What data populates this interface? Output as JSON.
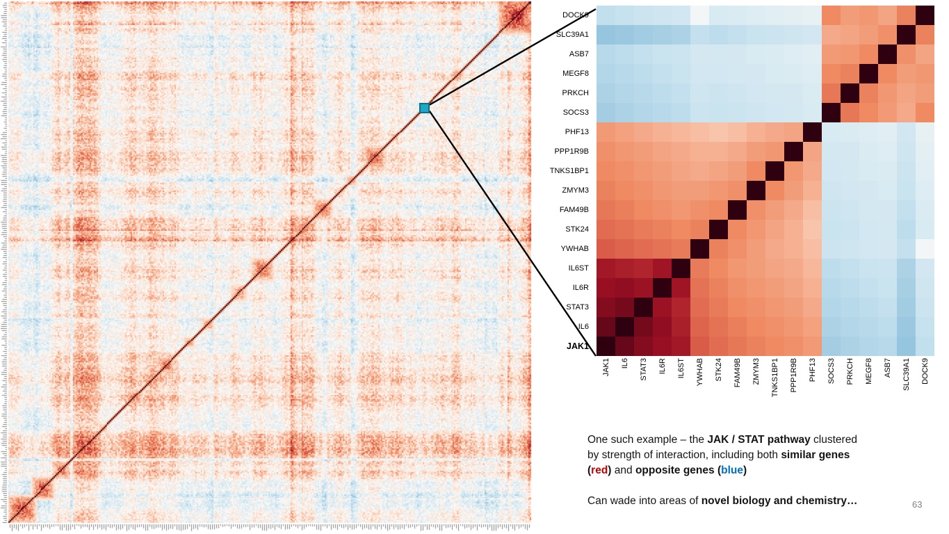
{
  "slide": {
    "page_number": "63"
  },
  "colors": {
    "positive_red": "#B2182B",
    "negative_blue": "#4393C3",
    "diagonal_dark": "#2E0010",
    "highlight_teal": "#1BA9C6",
    "caption_red": "#C00000",
    "caption_blue": "#0070C0"
  },
  "chart_data": [
    {
      "type": "heatmap",
      "name": "genome-wide-correlation-matrix",
      "description": "Large clustered gene-gene correlation matrix; red = positive correlation, blue = negative correlation, near-white = none. Dark red diagonal runs from bottom-left to top-right with red cluster blocks along it; tiny illegible gene tick labels line the left and bottom axes. A small teal square on the diagonal marks the JAK/STAT cluster that is enlarged at right.",
      "colormap": "blue-white-red (RdBu reversed)",
      "diagonal_orientation": "bottom-left to top-right",
      "highlight_cell": {
        "fraction_along_diagonal": 0.795,
        "color": "#1BA9C6",
        "links_to": "jak-stat-zoom"
      },
      "diagonal_clusters": [
        {
          "pos": 0.025,
          "size": 0.03,
          "intensity": 0.85
        },
        {
          "pos": 0.065,
          "size": 0.024,
          "intensity": 0.8
        },
        {
          "pos": 0.1,
          "size": 0.018,
          "intensity": 0.7
        },
        {
          "pos": 0.135,
          "size": 0.012,
          "intensity": 0.6
        },
        {
          "pos": 0.18,
          "size": 0.01,
          "intensity": 0.5
        },
        {
          "pos": 0.24,
          "size": 0.016,
          "intensity": 0.65
        },
        {
          "pos": 0.3,
          "size": 0.02,
          "intensity": 0.7
        },
        {
          "pos": 0.345,
          "size": 0.012,
          "intensity": 0.55
        },
        {
          "pos": 0.38,
          "size": 0.014,
          "intensity": 0.55
        },
        {
          "pos": 0.44,
          "size": 0.018,
          "intensity": 0.6
        },
        {
          "pos": 0.485,
          "size": 0.024,
          "intensity": 0.72
        },
        {
          "pos": 0.56,
          "size": 0.018,
          "intensity": 0.62
        },
        {
          "pos": 0.6,
          "size": 0.022,
          "intensity": 0.72
        },
        {
          "pos": 0.655,
          "size": 0.012,
          "intensity": 0.55
        },
        {
          "pos": 0.7,
          "size": 0.024,
          "intensity": 0.75
        },
        {
          "pos": 0.795,
          "size": 0.009,
          "intensity": 0.85
        },
        {
          "pos": 0.86,
          "size": 0.012,
          "intensity": 0.55
        },
        {
          "pos": 0.97,
          "size": 0.038,
          "intensity": 0.92
        }
      ],
      "render": {
        "n_cells": 380,
        "seed": 7
      }
    },
    {
      "type": "heatmap",
      "name": "jak-stat-zoom",
      "legend": "red = similar genes, blue = opposite genes, dark diagonal = self-correlation",
      "value_range": [
        -1,
        1
      ],
      "bold_row_label": "JAK1",
      "col_labels": [
        "JAK1",
        "IL6",
        "STAT3",
        "IL6R",
        "IL6ST",
        "YWHAB",
        "STK24",
        "FAM49B",
        "ZMYM3",
        "TNKS1BP1",
        "PPP1R9B",
        "PHF13",
        "SOCS3",
        "PRKCH",
        "MEGF8",
        "ASB7",
        "SLC39A1",
        "DOCK9"
      ],
      "row_labels": [
        "DOCK9",
        "SLC39A1",
        "ASB7",
        "MEGF8",
        "PRKCH",
        "SOCS3",
        "PHF13",
        "PPP1R9B",
        "TNKS1BP1",
        "ZMYM3",
        "FAM49B",
        "STK24",
        "YWHAB",
        "IL6ST",
        "IL6R",
        "STAT3",
        "IL6",
        "JAK1"
      ],
      "values": [
        [
          -0.35,
          -0.33,
          -0.3,
          -0.28,
          -0.26,
          -0.05,
          -0.22,
          -0.2,
          -0.18,
          -0.16,
          -0.15,
          -0.12,
          0.5,
          0.44,
          0.46,
          0.42,
          0.52,
          1.0
        ],
        [
          -0.5,
          -0.48,
          -0.46,
          -0.44,
          -0.42,
          -0.34,
          -0.36,
          -0.34,
          -0.32,
          -0.3,
          -0.28,
          -0.26,
          0.4,
          0.42,
          0.44,
          0.48,
          1.0,
          0.52
        ],
        [
          -0.38,
          -0.36,
          -0.34,
          -0.32,
          -0.3,
          -0.24,
          -0.25,
          -0.24,
          -0.22,
          -0.2,
          -0.18,
          -0.16,
          0.45,
          0.46,
          0.5,
          1.0,
          0.48,
          0.42
        ],
        [
          -0.4,
          -0.38,
          -0.36,
          -0.34,
          -0.32,
          -0.26,
          -0.26,
          -0.25,
          -0.24,
          -0.22,
          -0.2,
          -0.18,
          0.5,
          0.52,
          1.0,
          0.5,
          0.44,
          0.46
        ],
        [
          -0.42,
          -0.4,
          -0.38,
          -0.36,
          -0.34,
          -0.28,
          -0.3,
          -0.28,
          -0.26,
          -0.25,
          -0.24,
          -0.2,
          0.55,
          1.0,
          0.52,
          0.46,
          0.42,
          0.44
        ],
        [
          -0.45,
          -0.42,
          -0.4,
          -0.38,
          -0.36,
          -0.3,
          -0.32,
          -0.3,
          -0.28,
          -0.26,
          -0.25,
          -0.22,
          1.0,
          0.55,
          0.5,
          0.45,
          0.4,
          0.5
        ],
        [
          0.45,
          0.43,
          0.4,
          0.38,
          0.36,
          0.34,
          0.32,
          0.34,
          0.38,
          0.4,
          0.42,
          1.0,
          -0.22,
          -0.2,
          -0.18,
          -0.16,
          -0.26,
          -0.12
        ],
        [
          0.48,
          0.46,
          0.44,
          0.42,
          0.4,
          0.38,
          0.38,
          0.4,
          0.44,
          0.46,
          1.0,
          0.42,
          -0.25,
          -0.24,
          -0.2,
          -0.18,
          -0.28,
          -0.15
        ],
        [
          0.5,
          0.48,
          0.46,
          0.44,
          0.42,
          0.4,
          0.42,
          0.44,
          0.5,
          1.0,
          0.46,
          0.4,
          -0.26,
          -0.25,
          -0.22,
          -0.2,
          -0.3,
          -0.16
        ],
        [
          0.52,
          0.5,
          0.48,
          0.46,
          0.44,
          0.44,
          0.46,
          0.48,
          1.0,
          0.5,
          0.44,
          0.38,
          -0.28,
          -0.26,
          -0.24,
          -0.22,
          -0.32,
          -0.18
        ],
        [
          0.55,
          0.53,
          0.5,
          0.48,
          0.46,
          0.48,
          0.5,
          1.0,
          0.48,
          0.44,
          0.4,
          0.34,
          -0.3,
          -0.28,
          -0.25,
          -0.24,
          -0.34,
          -0.2
        ],
        [
          0.58,
          0.56,
          0.54,
          0.52,
          0.5,
          0.52,
          1.0,
          0.5,
          0.46,
          0.42,
          0.38,
          0.32,
          -0.32,
          -0.3,
          -0.26,
          -0.25,
          -0.36,
          -0.22
        ],
        [
          0.62,
          0.6,
          0.58,
          0.56,
          0.54,
          1.0,
          0.52,
          0.48,
          0.44,
          0.4,
          0.38,
          0.34,
          -0.3,
          -0.28,
          -0.26,
          -0.24,
          -0.34,
          -0.05
        ],
        [
          0.82,
          0.8,
          0.78,
          0.83,
          1.0,
          0.54,
          0.5,
          0.46,
          0.44,
          0.42,
          0.4,
          0.36,
          -0.36,
          -0.34,
          -0.32,
          -0.3,
          -0.42,
          -0.26
        ],
        [
          0.85,
          0.86,
          0.84,
          1.0,
          0.83,
          0.56,
          0.52,
          0.48,
          0.46,
          0.44,
          0.42,
          0.38,
          -0.38,
          -0.36,
          -0.34,
          -0.32,
          -0.44,
          -0.28
        ],
        [
          0.88,
          0.9,
          1.0,
          0.84,
          0.78,
          0.58,
          0.54,
          0.5,
          0.48,
          0.46,
          0.44,
          0.4,
          -0.4,
          -0.38,
          -0.36,
          -0.34,
          -0.46,
          -0.3
        ],
        [
          0.92,
          1.0,
          0.9,
          0.86,
          0.8,
          0.6,
          0.56,
          0.53,
          0.5,
          0.48,
          0.46,
          0.43,
          -0.42,
          -0.4,
          -0.38,
          -0.36,
          -0.48,
          -0.33
        ],
        [
          1.0,
          0.92,
          0.88,
          0.85,
          0.82,
          0.62,
          0.58,
          0.55,
          0.52,
          0.5,
          0.48,
          0.45,
          -0.45,
          -0.42,
          -0.4,
          -0.38,
          -0.5,
          -0.35
        ]
      ]
    }
  ],
  "caption": {
    "lines": [
      [
        {
          "text": "One such example – the ",
          "bold": false
        },
        {
          "text": "JAK / STAT pathway",
          "bold": true
        },
        {
          "text": " clustered",
          "bold": false
        }
      ],
      [
        {
          "text": "by strength of interaction, including both ",
          "bold": false
        },
        {
          "text": "similar genes",
          "bold": true
        }
      ],
      [
        {
          "text": "(",
          "bold": true
        },
        {
          "text": "red",
          "bold": true,
          "color": "#C00000"
        },
        {
          "text": ")",
          "bold": true
        },
        {
          "text": " and ",
          "bold": false
        },
        {
          "text": "opposite genes (",
          "bold": true
        },
        {
          "text": "blue",
          "bold": true,
          "color": "#0070C0"
        },
        {
          "text": ")",
          "bold": true
        }
      ],
      [],
      [
        {
          "text": "Can wade into areas of ",
          "bold": false
        },
        {
          "text": "novel biology and chemistry…",
          "bold": true
        }
      ]
    ]
  }
}
